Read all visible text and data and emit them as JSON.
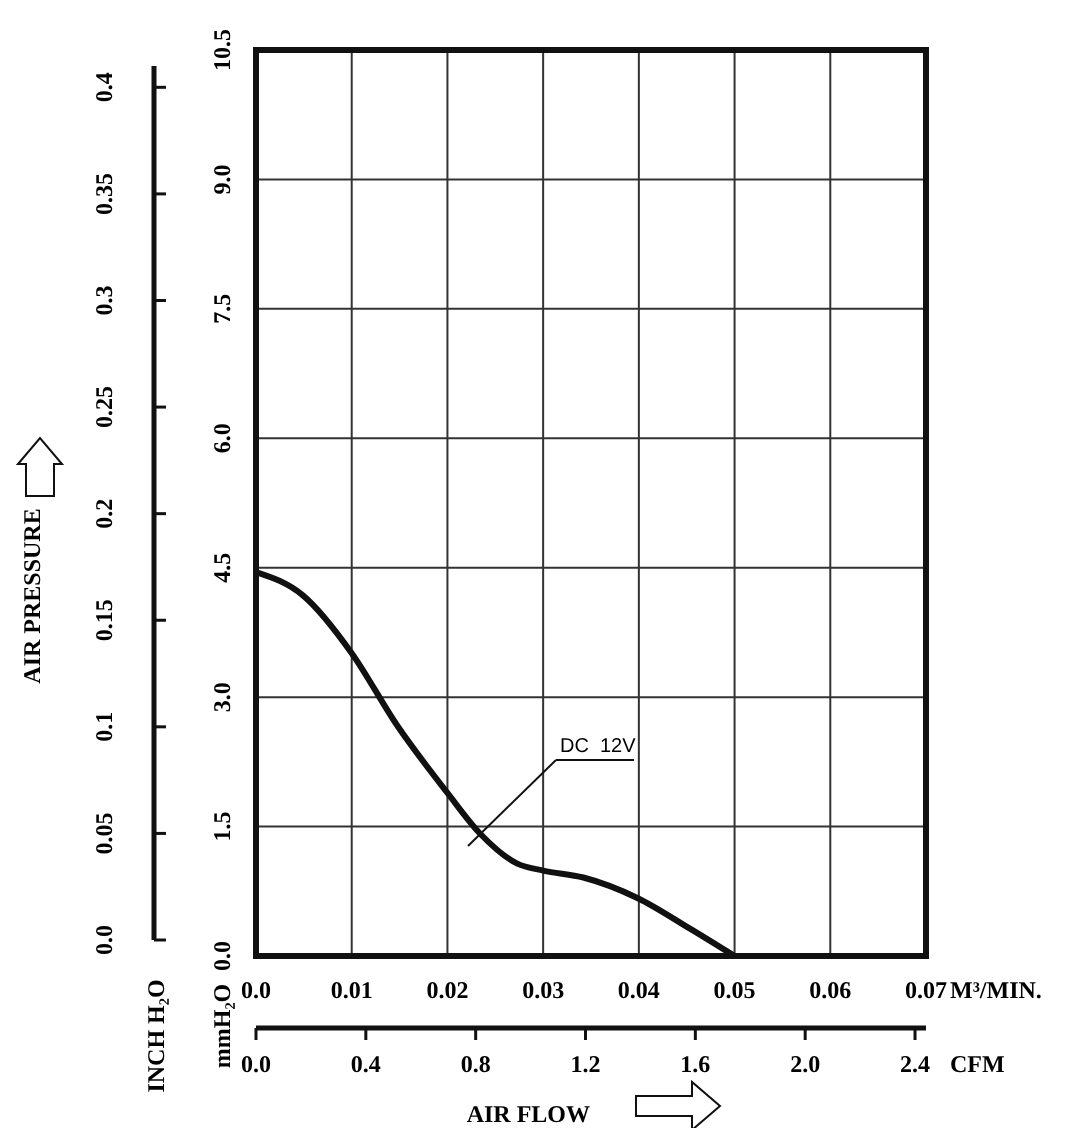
{
  "chart_data": {
    "type": "line",
    "xlabel": "M³/MIN.",
    "x2label": "CFM",
    "ylabel": "mmH₂O",
    "y2label": "INCH H₂O",
    "x": [
      0,
      0.0049,
      0.01,
      0.0147,
      0.02,
      0.0234,
      0.0273,
      0.03,
      0.0342,
      0.0399,
      0.0453,
      0.05
    ],
    "series": [
      {
        "color": "#111111",
        "values": [
          4.45,
          4.18,
          3.51,
          2.68,
          1.89,
          1.42,
          1.07,
          0.99,
          0.91,
          0.67,
          0.32,
          0
        ]
      }
    ],
    "xlim": [
      0,
      0.07
    ],
    "xticks": [
      {
        "value": 0,
        "label": "0.0"
      },
      0.01,
      0.02,
      0.03,
      0.04,
      0.05,
      0.06,
      0.07
    ],
    "x2lim": [
      0,
      2.44
    ],
    "x2ticks": [
      {
        "value": 0,
        "label": "0.0"
      },
      0.4,
      0.8,
      1.2,
      1.6,
      {
        "value": 2,
        "label": "2.0"
      },
      2.4
    ],
    "ylim": [
      0,
      10.5
    ],
    "yticks": [
      {
        "value": 0,
        "label": "0.0"
      },
      1.5,
      {
        "value": 3,
        "label": "3.0"
      },
      4.5,
      {
        "value": 6,
        "label": "6.0"
      },
      7.5,
      {
        "value": 9,
        "label": "9.0"
      },
      10.5
    ],
    "y2lim": [
      0,
      0.41
    ],
    "y2ticks": [
      {
        "value": 0,
        "label": "0.0"
      },
      0.05,
      0.1,
      0.15,
      0.2,
      0.25,
      0.3,
      0.35,
      0.4
    ],
    "grid": true,
    "line_style": "solid",
    "marker": "none",
    "annotations": [
      "DC  12V",
      "AIR PRESSURE",
      "AIR FLOW"
    ]
  }
}
